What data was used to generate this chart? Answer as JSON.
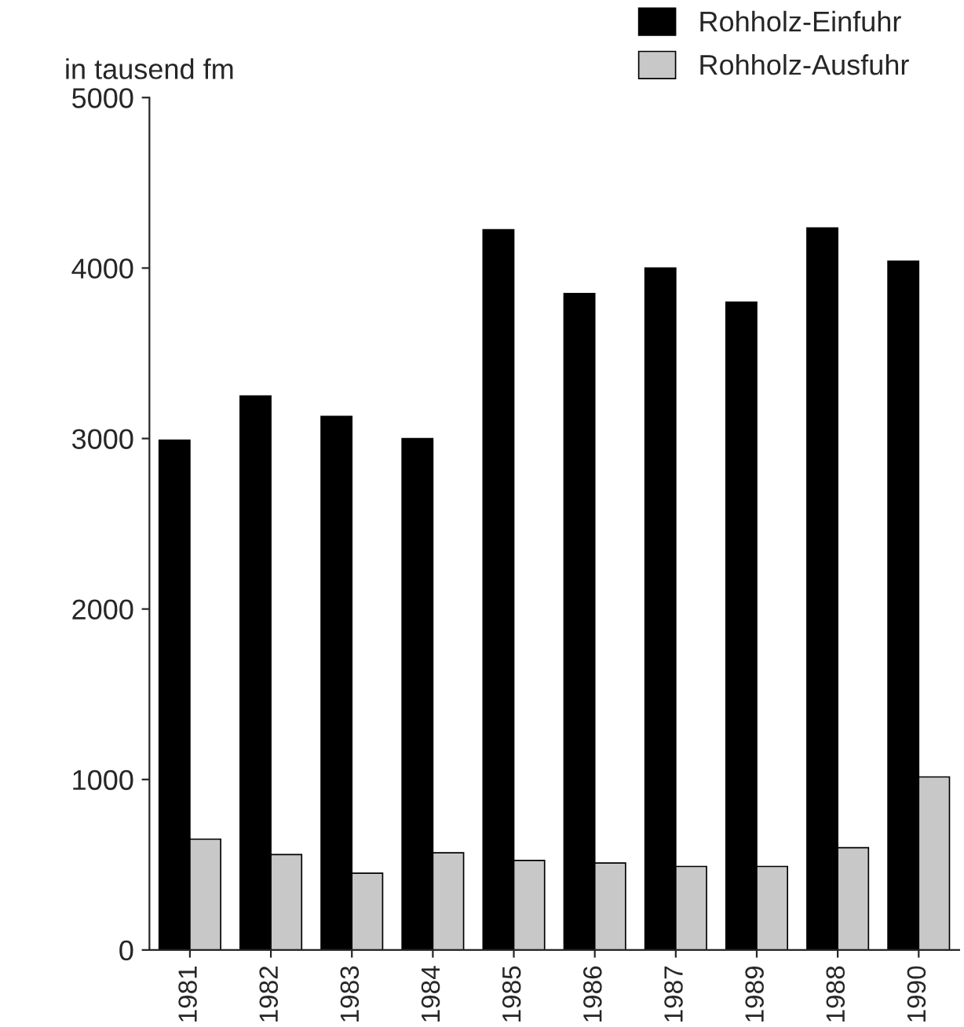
{
  "chart_data": {
    "type": "bar",
    "ylabel": "in tausend fm",
    "categories": [
      "1981",
      "1982",
      "1983",
      "1984",
      "1985",
      "1986",
      "1987",
      "1989",
      "1988",
      "1990"
    ],
    "series": [
      {
        "name": "Rohholz-Einfuhr",
        "color": "#000000",
        "values": [
          2990,
          3250,
          3130,
          3000,
          4225,
          3850,
          4000,
          3800,
          4235,
          4040
        ]
      },
      {
        "name": "Rohholz-Ausfuhr",
        "color": "#c8c8c8",
        "values": [
          650,
          560,
          450,
          570,
          525,
          510,
          490,
          490,
          600,
          1015
        ]
      }
    ],
    "ylim": [
      0,
      5000
    ],
    "yticks": [
      0,
      1000,
      2000,
      3000,
      4000,
      5000
    ],
    "grid": false,
    "legend": "top right"
  }
}
